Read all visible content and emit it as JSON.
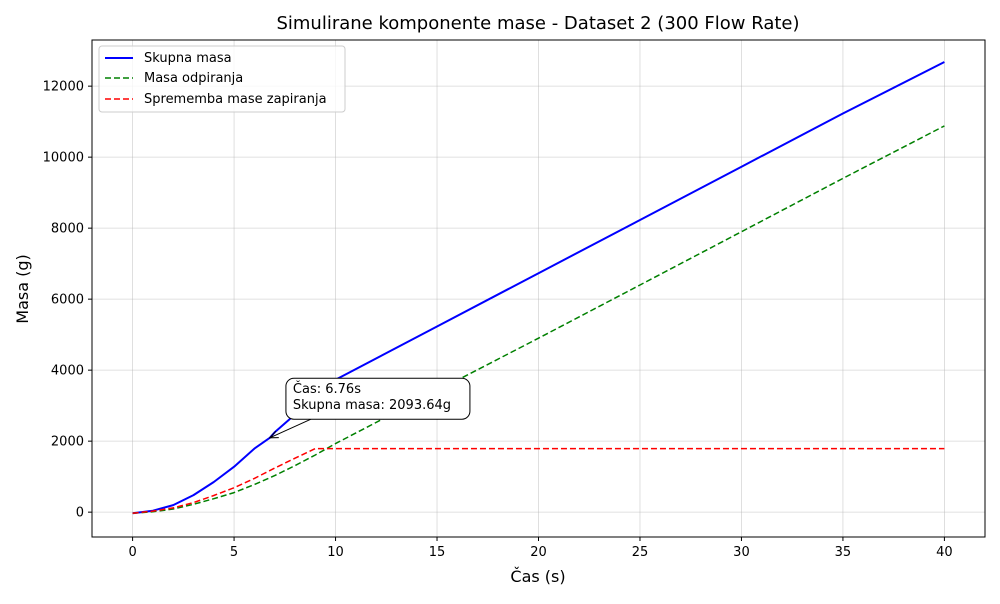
{
  "chart_data": {
    "type": "line",
    "title": "Simulirane komponente mase - Dataset 2 (300 Flow Rate)",
    "xlabel": "Čas (s)",
    "ylabel": "Masa (g)",
    "xlim": [
      -2,
      42
    ],
    "ylim": [
      -700,
      13300
    ],
    "xticks": [
      0,
      5,
      10,
      15,
      20,
      25,
      30,
      35,
      40
    ],
    "yticks": [
      0,
      2000,
      4000,
      6000,
      8000,
      10000,
      12000
    ],
    "grid": true,
    "legend_position": "top-left",
    "series": [
      {
        "name": "Skupna masa",
        "color": "#0000ff",
        "style": "solid",
        "x": [
          0,
          1,
          2,
          3,
          4,
          5,
          6,
          6.76,
          7,
          8,
          9,
          10,
          15,
          20,
          25,
          30,
          35,
          40
        ],
        "y": [
          -30,
          40,
          200,
          480,
          850,
          1280,
          1790,
          2093.64,
          2250,
          2750,
          3250,
          3730,
          5230,
          6730,
          8230,
          9730,
          11230,
          12680
        ]
      },
      {
        "name": "Masa odpiranja",
        "color": "#008000",
        "style": "dashed",
        "x": [
          0,
          1,
          2,
          3,
          4,
          5,
          6,
          7,
          8,
          9,
          10,
          15,
          20,
          25,
          30,
          35,
          40
        ],
        "y": [
          -30,
          10,
          90,
          220,
          380,
          550,
          780,
          1030,
          1310,
          1610,
          1930,
          3420,
          4900,
          6400,
          7900,
          9400,
          10880
        ]
      },
      {
        "name": "Sprememba mase zapiranja",
        "color": "#ff0000",
        "style": "dashed",
        "x": [
          0,
          1,
          2,
          3,
          4,
          5,
          6,
          7,
          8,
          9,
          10,
          15,
          20,
          25,
          30,
          35,
          40
        ],
        "y": [
          -30,
          30,
          120,
          270,
          470,
          690,
          950,
          1240,
          1520,
          1790,
          1790,
          1790,
          1790,
          1790,
          1790,
          1790,
          1790
        ]
      }
    ],
    "annotation": {
      "text_line1": "Čas: 6.76s",
      "text_line2": "Skupna masa: 2093.64g",
      "point": [
        6.76,
        2093.64
      ],
      "text_anchor": [
        7.9,
        3350
      ]
    }
  }
}
